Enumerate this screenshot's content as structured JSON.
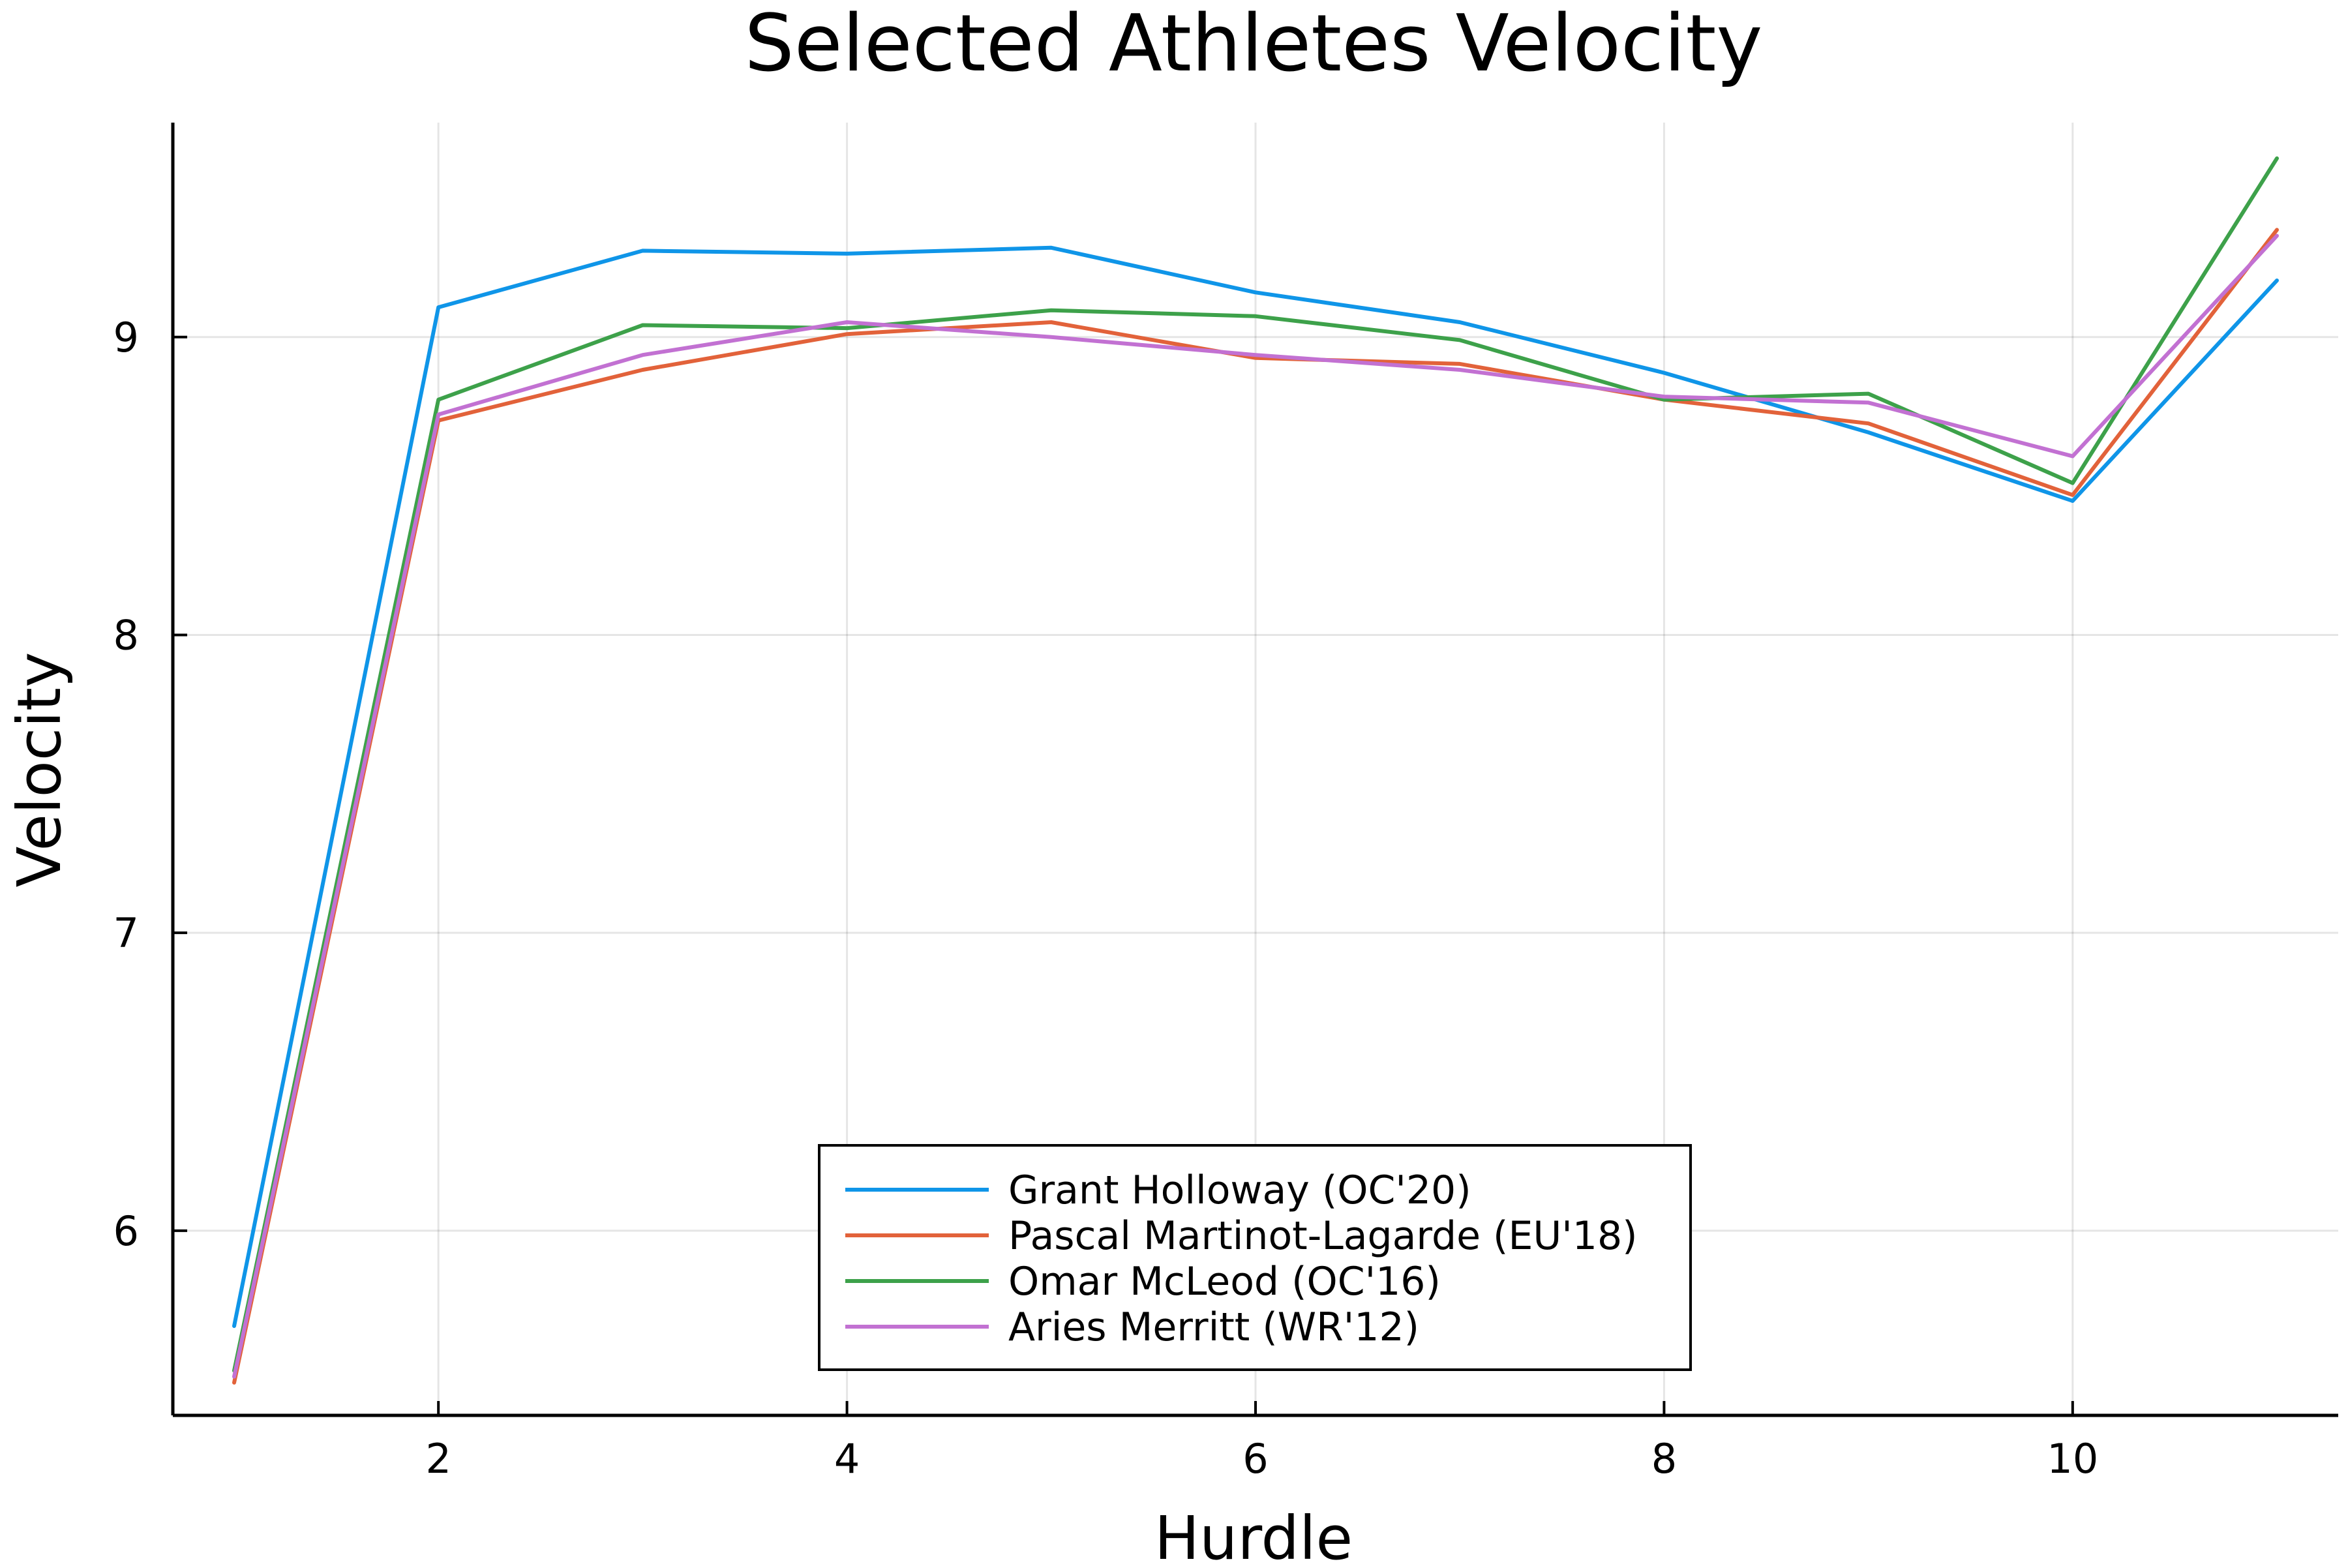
{
  "chart_data": {
    "type": "line",
    "title": "Selected Athletes Velocity",
    "xlabel": "Hurdle",
    "ylabel": "Velocity",
    "xlim": [
      0.7,
      11.3
    ],
    "ylim": [
      5.38,
      9.72
    ],
    "xticks": [
      2,
      4,
      6,
      8,
      10
    ],
    "xtick_labels": [
      "2",
      "4",
      "6",
      "8",
      "10"
    ],
    "yticks": [
      6,
      7,
      8,
      9
    ],
    "ytick_labels": [
      "6",
      "7",
      "8",
      "9"
    ],
    "grid": true,
    "legend_position": "bottom-center",
    "x": [
      1,
      2,
      3,
      4,
      5,
      6,
      7,
      8,
      9,
      10,
      11
    ],
    "series": [
      {
        "name": "Grant Holloway (OC'20)",
        "color": "#0f95e8",
        "values": [
          5.68,
          9.1,
          9.29,
          9.28,
          9.3,
          9.15,
          9.05,
          8.88,
          8.68,
          8.45,
          9.19
        ]
      },
      {
        "name": "Pascal Martinot-Lagarde (EU'18)",
        "color": "#e2623a",
        "values": [
          5.49,
          8.72,
          8.89,
          9.01,
          9.05,
          8.93,
          8.91,
          8.79,
          8.71,
          8.47,
          9.36
        ]
      },
      {
        "name": "Omar McLeod (OC'16)",
        "color": "#3da14a",
        "values": [
          5.53,
          8.79,
          9.04,
          9.03,
          9.09,
          9.07,
          8.99,
          8.79,
          8.81,
          8.51,
          9.6
        ]
      },
      {
        "name": "Aries Merritt (WR'12)",
        "color": "#c271d2",
        "values": [
          5.51,
          8.74,
          8.94,
          9.05,
          9.0,
          8.94,
          8.89,
          8.8,
          8.78,
          8.6,
          9.34
        ]
      }
    ]
  }
}
